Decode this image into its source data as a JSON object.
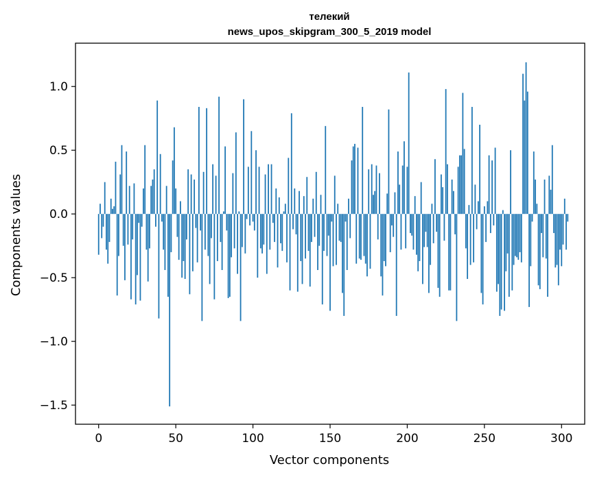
{
  "chart_data": {
    "type": "bar",
    "title_line1": "телекий",
    "title_line2": "news_upos_skipgram_300_5_2019 model",
    "xlabel": "Vector components",
    "ylabel": "Components values",
    "xlim": [
      -15,
      315
    ],
    "ylim": [
      -1.65,
      1.34
    ],
    "xticks": [
      0,
      50,
      100,
      150,
      200,
      250,
      300
    ],
    "xtick_labels": [
      "0",
      "50",
      "100",
      "150",
      "200",
      "250",
      "300"
    ],
    "yticks": [
      -1.5,
      -1.0,
      -0.5,
      0.0,
      0.5,
      1.0
    ],
    "ytick_labels": [
      "−1.5",
      "−1.0",
      "−0.5",
      "0.0",
      "0.5",
      "1.0"
    ],
    "bar_color": "#1f77b4",
    "values": [
      -0.32,
      0.08,
      -0.19,
      -0.1,
      0.25,
      -0.28,
      -0.39,
      -0.22,
      0.12,
      0.04,
      0.06,
      0.41,
      -0.64,
      -0.33,
      0.31,
      0.54,
      -0.25,
      -0.52,
      0.49,
      -0.24,
      0.22,
      -0.67,
      -0.2,
      0.24,
      -0.71,
      -0.48,
      -0.07,
      -0.68,
      -0.1,
      0.2,
      0.54,
      -0.28,
      -0.53,
      -0.27,
      0.22,
      0.27,
      0.35,
      -0.1,
      0.89,
      -0.82,
      0.47,
      -0.06,
      -0.28,
      -0.44,
      0.22,
      -0.65,
      -1.51,
      -0.3,
      0.42,
      0.68,
      0.2,
      -0.18,
      -0.36,
      0.1,
      -0.5,
      -0.37,
      -0.51,
      -0.2,
      0.35,
      -0.63,
      0.31,
      -0.45,
      0.27,
      -0.11,
      -0.38,
      0.84,
      -0.13,
      -0.84,
      0.33,
      -0.28,
      0.83,
      -0.33,
      -0.55,
      -0.19,
      0.39,
      -0.67,
      0.3,
      -0.37,
      0.92,
      -0.22,
      -0.44,
      0.02,
      0.53,
      -0.13,
      -0.66,
      -0.65,
      -0.34,
      0.32,
      -0.27,
      0.64,
      -0.47,
      0.02,
      -0.84,
      -0.26,
      0.9,
      -0.31,
      -0.04,
      0.37,
      -0.09,
      0.65,
      -0.06,
      -0.13,
      0.5,
      -0.5,
      0.37,
      -0.27,
      -0.31,
      -0.24,
      0.31,
      -0.47,
      0.39,
      -0.28,
      0.39,
      -0.07,
      -0.22,
      0.2,
      -0.42,
      0.13,
      -0.23,
      -0.29,
      0.02,
      0.08,
      -0.38,
      0.44,
      -0.6,
      0.79,
      -0.12,
      0.2,
      -0.16,
      -0.61,
      0.18,
      -0.37,
      -0.55,
      0.14,
      -0.35,
      0.29,
      -0.29,
      -0.57,
      -0.22,
      0.12,
      -0.18,
      0.33,
      -0.44,
      -0.25,
      0.15,
      -0.71,
      -0.29,
      0.69,
      -0.33,
      -0.17,
      -0.76,
      -0.06,
      -0.41,
      0.3,
      -0.4,
      0.08,
      -0.21,
      -0.22,
      -0.62,
      -0.8,
      -0.06,
      -0.44,
      0.12,
      -0.19,
      0.42,
      0.53,
      0.55,
      -0.39,
      0.52,
      -0.35,
      -0.36,
      0.84,
      -0.33,
      -0.39,
      -0.49,
      0.35,
      -0.43,
      0.39,
      0.15,
      0.18,
      0.38,
      -0.2,
      0.32,
      -0.49,
      -0.64,
      -0.37,
      -0.41,
      0.16,
      0.82,
      -0.3,
      -0.09,
      -0.18,
      0.17,
      -0.8,
      0.49,
      0.23,
      -0.28,
      0.38,
      0.57,
      -0.27,
      0.37,
      1.11,
      -0.15,
      -0.17,
      -0.28,
      0.14,
      -0.32,
      -0.45,
      -0.37,
      0.25,
      -0.55,
      -0.26,
      -0.14,
      -0.26,
      -0.62,
      -0.4,
      0.08,
      -0.23,
      0.43,
      -0.14,
      -0.58,
      -0.65,
      0.31,
      0.21,
      -0.21,
      0.98,
      0.39,
      -0.6,
      -0.6,
      0.27,
      0.18,
      -0.16,
      -0.84,
      0.37,
      0.46,
      0.46,
      0.95,
      0.51,
      -0.27,
      -0.51,
      0.07,
      -0.4,
      0.84,
      -0.38,
      0.23,
      -0.12,
      0.1,
      0.7,
      -0.62,
      -0.71,
      0.06,
      -0.22,
      0.1,
      0.46,
      -0.15,
      0.42,
      -0.09,
      0.52,
      -0.61,
      -0.55,
      -0.8,
      -0.75,
      0.03,
      -0.76,
      -0.45,
      -0.31,
      -0.65,
      0.5,
      -0.6,
      -0.4,
      -0.33,
      -0.34,
      -0.36,
      -0.3,
      -0.38,
      1.1,
      0.89,
      1.19,
      0.96,
      -0.73,
      -0.41,
      -0.06,
      0.49,
      0.27,
      0.08,
      -0.56,
      -0.59,
      -0.15,
      -0.34,
      0.27,
      -0.35,
      -0.65,
      0.3,
      0.19,
      0.54,
      -0.15,
      -0.42,
      -0.4,
      -0.56,
      -0.28,
      -0.41,
      -0.24,
      0.12,
      -0.28,
      -0.06
    ]
  }
}
